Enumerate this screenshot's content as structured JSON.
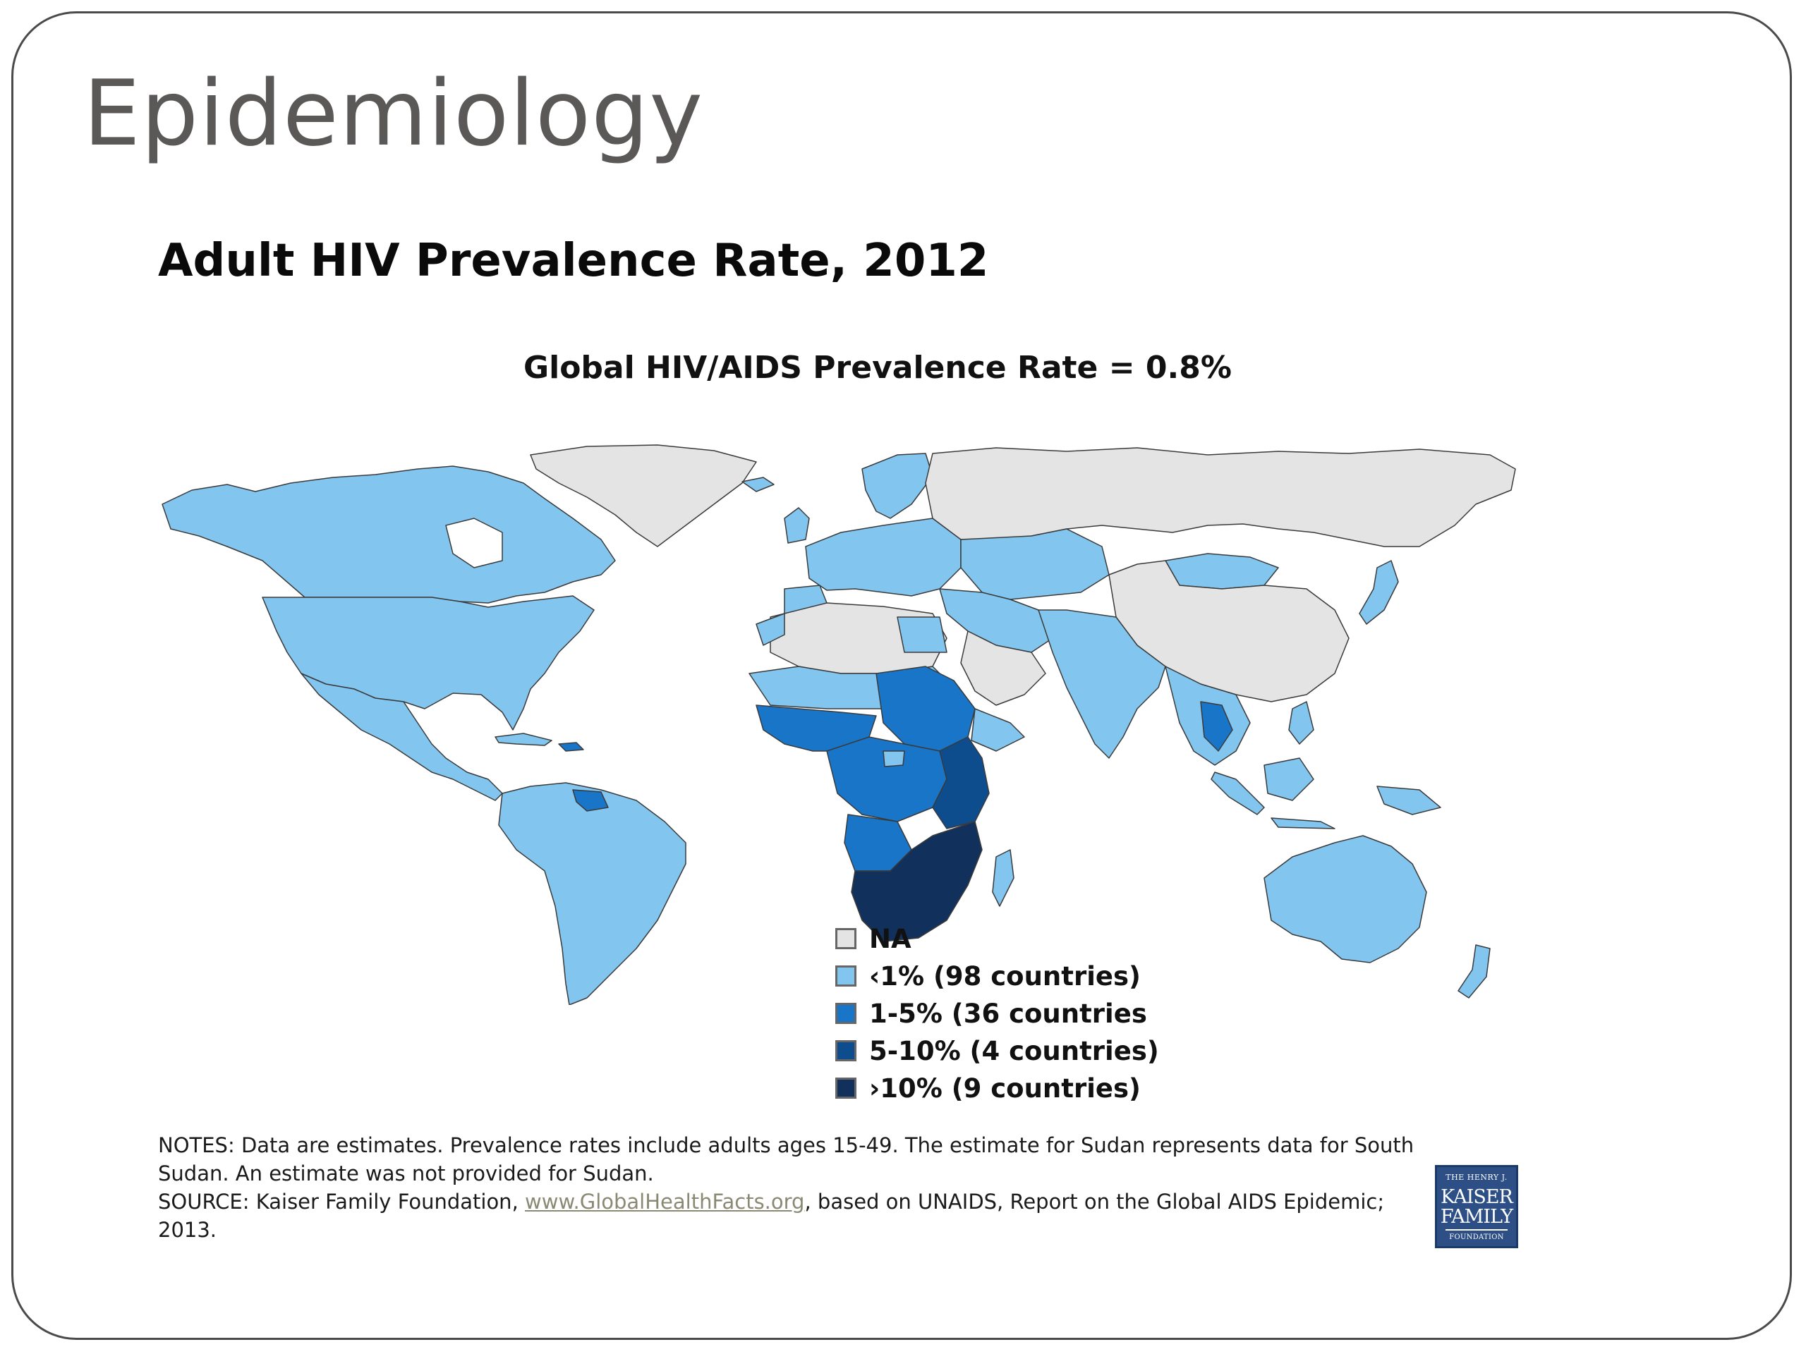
{
  "slide": {
    "title": "Epidemiology"
  },
  "map": {
    "title": "Adult HIV Prevalence Rate, 2012",
    "subtitle": "Global HIV/AIDS Prevalence Rate = 0.8%",
    "legend": [
      {
        "key": "na",
        "label": "NA",
        "color": "#e4e4e4"
      },
      {
        "key": "lt1",
        "label": "‹1% (98 countries)",
        "color": "#82c6ef"
      },
      {
        "key": "1to5",
        "label": "1-5% (36 countries",
        "color": "#1875c8"
      },
      {
        "key": "5to10",
        "label": "5-10% (4 countries)",
        "color": "#0e4d8d"
      },
      {
        "key": "gt10",
        "label": "›10% (9 countries)",
        "color": "#12305c"
      }
    ]
  },
  "notes": {
    "line1": "NOTES: Data are estimates. Prevalence rates include adults ages 15-49. The estimate for Sudan represents data for South Sudan. An estimate was not provided for Sudan.",
    "source_prefix": "SOURCE: Kaiser Family Foundation, ",
    "source_link": "www.GlobalHealthFacts.org",
    "source_suffix": ", based on UNAIDS, Report on the Global AIDS Epidemic; 2013."
  },
  "logo": {
    "line1": "THE HENRY J.",
    "line2": "KAISER",
    "line3": "FAMILY",
    "line4": "FOUNDATION"
  }
}
